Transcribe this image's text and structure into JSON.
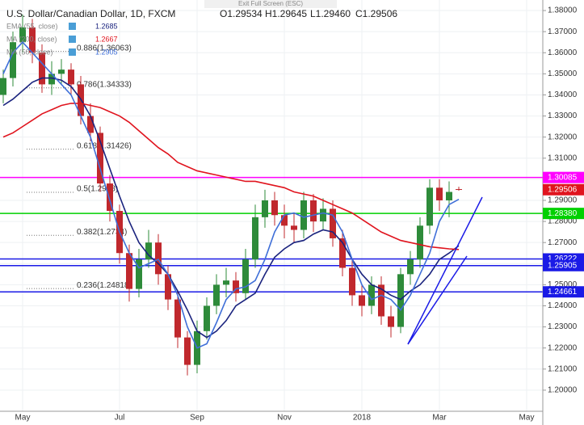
{
  "chart_data": {
    "type": "candlestick",
    "title": "U.S. Dollar/Canadian Dollar, 1D, FXCM",
    "header_values": [
      "O1.29534",
      "H1.29645",
      "L1.29460",
      "C1.29506"
    ],
    "fullscreen_note": "Exit Full Screen (ESC)",
    "categories": [
      null,
      null,
      "May",
      null,
      null,
      null,
      null,
      null,
      null,
      null,
      null,
      null,
      "Jul",
      null,
      null,
      null,
      null,
      null,
      null,
      null,
      "Sep",
      null,
      null,
      null,
      null,
      null,
      null,
      null,
      null,
      "Nov",
      null,
      null,
      null,
      null,
      null,
      null,
      null,
      "2018",
      null,
      null,
      null,
      null,
      null,
      null,
      null,
      "Mar",
      null,
      null,
      null,
      null,
      null,
      null,
      null,
      null,
      "May",
      null
    ],
    "open": [
      1.34,
      1.348,
      1.365,
      1.372,
      1.36,
      1.345,
      1.35,
      1.352,
      1.345,
      1.33,
      1.322,
      1.298,
      1.285,
      1.265,
      1.248,
      1.262,
      1.27,
      1.255,
      1.243,
      1.225,
      1.212,
      1.228,
      1.24,
      1.25,
      1.252,
      1.246,
      1.262,
      1.282,
      1.29,
      1.283,
      1.278,
      1.276,
      1.29,
      1.28,
      1.286,
      1.272,
      1.258,
      1.245,
      1.24,
      1.25,
      1.235,
      1.23,
      1.255,
      1.262,
      1.278,
      1.296,
      1.29,
      1.29534,
      null,
      null,
      null,
      null,
      null,
      null,
      null,
      null
    ],
    "high": [
      1.352,
      1.37,
      1.378,
      1.376,
      1.364,
      1.356,
      1.357,
      1.355,
      1.349,
      1.336,
      1.325,
      1.302,
      1.288,
      1.269,
      1.267,
      1.276,
      1.274,
      1.259,
      1.247,
      1.228,
      1.233,
      1.244,
      1.255,
      1.258,
      1.256,
      1.267,
      1.288,
      1.295,
      1.294,
      1.288,
      1.284,
      1.294,
      1.293,
      1.291,
      1.29,
      1.276,
      1.262,
      1.25,
      1.254,
      1.254,
      1.24,
      1.258,
      1.266,
      1.282,
      1.3,
      1.3,
      1.299,
      1.29645,
      null,
      null,
      null,
      null,
      null,
      null,
      null,
      null
    ],
    "low": [
      1.336,
      1.344,
      1.36,
      1.355,
      1.341,
      1.34,
      1.345,
      1.34,
      1.326,
      1.318,
      1.294,
      1.28,
      1.26,
      1.242,
      1.244,
      1.258,
      1.25,
      1.238,
      1.22,
      1.207,
      1.208,
      1.224,
      1.236,
      1.244,
      1.242,
      1.243,
      1.258,
      1.277,
      1.278,
      1.272,
      1.27,
      1.272,
      1.275,
      1.276,
      1.268,
      1.254,
      1.24,
      1.235,
      1.236,
      1.231,
      1.225,
      1.227,
      1.25,
      1.258,
      1.274,
      1.285,
      1.282,
      1.2946,
      null,
      null,
      null,
      null,
      null,
      null,
      null,
      null
    ],
    "close": [
      1.348,
      1.365,
      1.372,
      1.36,
      1.345,
      1.35,
      1.352,
      1.345,
      1.33,
      1.322,
      1.298,
      1.285,
      1.265,
      1.248,
      1.262,
      1.27,
      1.255,
      1.243,
      1.225,
      1.212,
      1.228,
      1.24,
      1.25,
      1.252,
      1.246,
      1.262,
      1.282,
      1.29,
      1.283,
      1.278,
      1.276,
      1.29,
      1.28,
      1.286,
      1.272,
      1.258,
      1.245,
      1.24,
      1.25,
      1.235,
      1.23,
      1.255,
      1.262,
      1.278,
      1.296,
      1.29,
      1.294,
      1.29506,
      null,
      null,
      null,
      null,
      null,
      null,
      null,
      null
    ],
    "up_color": "#2e8b3a",
    "down_color": "#c0282d",
    "series": [
      {
        "name": "EMA (55, close)",
        "value_label": "1.2685",
        "color": "#1a237e",
        "values": [
          1.335,
          1.338,
          1.342,
          1.346,
          1.348,
          1.348,
          1.347,
          1.344,
          1.338,
          1.33,
          1.318,
          1.305,
          1.292,
          1.28,
          1.27,
          1.264,
          1.26,
          1.255,
          1.247,
          1.238,
          1.228,
          1.225,
          1.228,
          1.233,
          1.24,
          1.243,
          1.246,
          1.255,
          1.263,
          1.267,
          1.27,
          1.271,
          1.274,
          1.276,
          1.275,
          1.27,
          1.262,
          1.255,
          1.25,
          1.248,
          1.245,
          1.243,
          1.247,
          1.25,
          1.255,
          1.262,
          1.265,
          1.2685,
          null,
          null,
          null,
          null,
          null,
          null,
          null,
          null
        ]
      },
      {
        "name": "MA (200, close)",
        "value_label": "1.2667",
        "color": "#e0141e",
        "values": [
          1.32,
          1.322,
          1.325,
          1.328,
          1.331,
          1.333,
          1.335,
          1.336,
          1.336,
          1.335,
          1.334,
          1.332,
          1.33,
          1.327,
          1.323,
          1.319,
          1.315,
          1.312,
          1.308,
          1.306,
          1.304,
          1.303,
          1.302,
          1.301,
          1.3,
          1.299,
          1.299,
          1.298,
          1.297,
          1.296,
          1.294,
          1.293,
          1.292,
          1.29,
          1.288,
          1.286,
          1.284,
          1.281,
          1.278,
          1.275,
          1.273,
          1.271,
          1.27,
          1.269,
          1.268,
          1.2675,
          1.267,
          1.2667,
          null,
          null,
          null,
          null,
          null,
          null,
          null,
          null
        ]
      },
      {
        "name": "MA (50, close)",
        "value_label": "1.2905",
        "color": "#3f6fd8",
        "values": [
          1.35,
          1.36,
          1.365,
          1.36,
          1.355,
          1.35,
          1.345,
          1.34,
          1.33,
          1.32,
          1.305,
          1.29,
          1.275,
          1.265,
          1.258,
          1.26,
          1.262,
          1.255,
          1.245,
          1.23,
          1.22,
          1.222,
          1.232,
          1.243,
          1.248,
          1.249,
          1.252,
          1.262,
          1.275,
          1.283,
          1.284,
          1.282,
          1.283,
          1.284,
          1.283,
          1.275,
          1.262,
          1.25,
          1.243,
          1.245,
          1.243,
          1.238,
          1.245,
          1.255,
          1.265,
          1.28,
          1.288,
          1.2905,
          null,
          null,
          null,
          null,
          null,
          null,
          null,
          null
        ]
      }
    ],
    "levels": [
      {
        "value": 1.30085,
        "label": "1.30085",
        "color": "#ff00ff"
      },
      {
        "value": 1.2838,
        "label": "1.28380",
        "color": "#00d000"
      },
      {
        "value": 1.26222,
        "label": "1.26222",
        "color": "#1a1ae6"
      },
      {
        "value": 1.25905,
        "label": "1.25905",
        "color": "#1a1ae6"
      },
      {
        "value": 1.24661,
        "label": "1.24661",
        "color": "#1a1ae6"
      }
    ],
    "last_price": {
      "value": 1.29506,
      "label": "1.29506",
      "color": "#e0141e"
    },
    "fib_levels": [
      {
        "value": 1.36063,
        "label": "0.886(1.36063)"
      },
      {
        "value": 1.34333,
        "label": "0.786(1.34333)"
      },
      {
        "value": 1.31426,
        "label": "0.618(1.31426)"
      },
      {
        "value": 1.2938,
        "label": "0.5(1.2938)"
      },
      {
        "value": 1.2734,
        "label": "0.382(1.2734)"
      },
      {
        "value": 1.24818,
        "label": "0.236(1.24818)"
      }
    ],
    "ylim": [
      1.19,
      1.385
    ],
    "yticks": [
      {
        "value": 1.2,
        "label": "1.20000"
      },
      {
        "value": 1.21,
        "label": "1.21000"
      },
      {
        "value": 1.22,
        "label": "1.22000"
      },
      {
        "value": 1.23,
        "label": "1.23000"
      },
      {
        "value": 1.24,
        "label": "1.24000"
      },
      {
        "value": 1.25,
        "label": "1.25000"
      },
      {
        "value": 1.26,
        "label": "1.26000"
      },
      {
        "value": 1.27,
        "label": "1.27000"
      },
      {
        "value": 1.28,
        "label": "1.28000"
      },
      {
        "value": 1.29,
        "label": "1.29000"
      },
      {
        "value": 1.3,
        "label": "1.30000"
      },
      {
        "value": 1.31,
        "label": "1.31000"
      },
      {
        "value": 1.32,
        "label": "1.32000"
      },
      {
        "value": 1.33,
        "label": "1.33000"
      },
      {
        "value": 1.34,
        "label": "1.34000"
      },
      {
        "value": 1.35,
        "label": "1.35000"
      },
      {
        "value": 1.36,
        "label": "1.36000"
      },
      {
        "value": 1.37,
        "label": "1.37000"
      },
      {
        "value": 1.38,
        "label": "1.38000"
      }
    ],
    "grid": true
  }
}
